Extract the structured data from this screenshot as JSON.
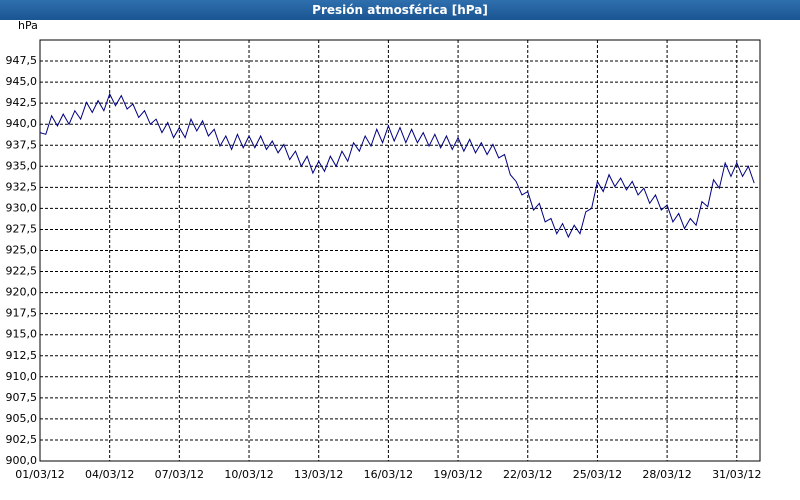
{
  "chart_data": {
    "type": "line",
    "title": "Presión atmosférica [hPa]",
    "y_label": "hPa",
    "xlim": [
      "2012-03-01T00:00",
      "2012-04-01T00:00"
    ],
    "xticks": [
      {
        "value": "2012-03-01T00:00",
        "label": "01/03/12"
      },
      {
        "value": "2012-03-04T00:00",
        "label": "04/03/12"
      },
      {
        "value": "2012-03-07T00:00",
        "label": "07/03/12"
      },
      {
        "value": "2012-03-10T00:00",
        "label": "10/03/12"
      },
      {
        "value": "2012-03-13T00:00",
        "label": "13/03/12"
      },
      {
        "value": "2012-03-16T00:00",
        "label": "16/03/12"
      },
      {
        "value": "2012-03-19T00:00",
        "label": "19/03/12"
      },
      {
        "value": "2012-03-22T00:00",
        "label": "22/03/12"
      },
      {
        "value": "2012-03-25T00:00",
        "label": "25/03/12"
      },
      {
        "value": "2012-03-28T00:00",
        "label": "28/03/12"
      },
      {
        "value": "2012-03-31T00:00",
        "label": "31/03/12"
      }
    ],
    "ylim": [
      900,
      950
    ],
    "yticks": [
      {
        "value": 900,
        "label": "900,0"
      },
      {
        "value": 902.5,
        "label": "902,5"
      },
      {
        "value": 905,
        "label": "905,0"
      },
      {
        "value": 907.5,
        "label": "907,5"
      },
      {
        "value": 910,
        "label": "910,0"
      },
      {
        "value": 912.5,
        "label": "912,5"
      },
      {
        "value": 915,
        "label": "915,0"
      },
      {
        "value": 917.5,
        "label": "917,5"
      },
      {
        "value": 920,
        "label": "920,0"
      },
      {
        "value": 922.5,
        "label": "922,5"
      },
      {
        "value": 925,
        "label": "925,0"
      },
      {
        "value": 927.5,
        "label": "927,5"
      },
      {
        "value": 930,
        "label": "930,0"
      },
      {
        "value": 932.5,
        "label": "932,5"
      },
      {
        "value": 935,
        "label": "935,0"
      },
      {
        "value": 937.5,
        "label": "937,5"
      },
      {
        "value": 940,
        "label": "940,0"
      },
      {
        "value": 942.5,
        "label": "942,5"
      },
      {
        "value": 945,
        "label": "945,0"
      },
      {
        "value": 947.5,
        "label": "947,5"
      }
    ],
    "grid": true,
    "x": [
      "2012-03-01T00:00",
      "2012-03-01T06:00",
      "2012-03-01T12:00",
      "2012-03-01T18:00",
      "2012-03-02T00:00",
      "2012-03-02T06:00",
      "2012-03-02T12:00",
      "2012-03-02T18:00",
      "2012-03-03T00:00",
      "2012-03-03T06:00",
      "2012-03-03T12:00",
      "2012-03-03T18:00",
      "2012-03-04T00:00",
      "2012-03-04T06:00",
      "2012-03-04T12:00",
      "2012-03-04T18:00",
      "2012-03-05T00:00",
      "2012-03-05T06:00",
      "2012-03-05T12:00",
      "2012-03-05T18:00",
      "2012-03-06T00:00",
      "2012-03-06T06:00",
      "2012-03-06T12:00",
      "2012-03-06T18:00",
      "2012-03-07T00:00",
      "2012-03-07T06:00",
      "2012-03-07T12:00",
      "2012-03-07T18:00",
      "2012-03-08T00:00",
      "2012-03-08T06:00",
      "2012-03-08T12:00",
      "2012-03-08T18:00",
      "2012-03-09T00:00",
      "2012-03-09T06:00",
      "2012-03-09T12:00",
      "2012-03-09T18:00",
      "2012-03-10T00:00",
      "2012-03-10T06:00",
      "2012-03-10T12:00",
      "2012-03-10T18:00",
      "2012-03-11T00:00",
      "2012-03-11T06:00",
      "2012-03-11T12:00",
      "2012-03-11T18:00",
      "2012-03-12T00:00",
      "2012-03-12T06:00",
      "2012-03-12T12:00",
      "2012-03-12T18:00",
      "2012-03-13T00:00",
      "2012-03-13T06:00",
      "2012-03-13T12:00",
      "2012-03-13T18:00",
      "2012-03-14T00:00",
      "2012-03-14T06:00",
      "2012-03-14T12:00",
      "2012-03-14T18:00",
      "2012-03-15T00:00",
      "2012-03-15T06:00",
      "2012-03-15T12:00",
      "2012-03-15T18:00",
      "2012-03-16T00:00",
      "2012-03-16T06:00",
      "2012-03-16T12:00",
      "2012-03-16T18:00",
      "2012-03-17T00:00",
      "2012-03-17T06:00",
      "2012-03-17T12:00",
      "2012-03-17T18:00",
      "2012-03-18T00:00",
      "2012-03-18T06:00",
      "2012-03-18T12:00",
      "2012-03-18T18:00",
      "2012-03-19T00:00",
      "2012-03-19T06:00",
      "2012-03-19T12:00",
      "2012-03-19T18:00",
      "2012-03-20T00:00",
      "2012-03-20T06:00",
      "2012-03-20T12:00",
      "2012-03-20T18:00",
      "2012-03-21T00:00",
      "2012-03-21T06:00",
      "2012-03-21T12:00",
      "2012-03-21T18:00",
      "2012-03-22T00:00",
      "2012-03-22T06:00",
      "2012-03-22T12:00",
      "2012-03-22T18:00",
      "2012-03-23T00:00",
      "2012-03-23T06:00",
      "2012-03-23T12:00",
      "2012-03-23T18:00",
      "2012-03-24T00:00",
      "2012-03-24T06:00",
      "2012-03-24T12:00",
      "2012-03-24T18:00",
      "2012-03-25T00:00",
      "2012-03-25T06:00",
      "2012-03-25T12:00",
      "2012-03-25T18:00",
      "2012-03-26T00:00",
      "2012-03-26T06:00",
      "2012-03-26T12:00",
      "2012-03-26T18:00",
      "2012-03-27T00:00",
      "2012-03-27T06:00",
      "2012-03-27T12:00",
      "2012-03-27T18:00",
      "2012-03-28T00:00",
      "2012-03-28T06:00",
      "2012-03-28T12:00",
      "2012-03-28T18:00",
      "2012-03-29T00:00",
      "2012-03-29T06:00",
      "2012-03-29T12:00",
      "2012-03-29T18:00",
      "2012-03-30T00:00",
      "2012-03-30T06:00",
      "2012-03-30T12:00",
      "2012-03-30T18:00",
      "2012-03-31T00:00",
      "2012-03-31T06:00",
      "2012-03-31T12:00",
      "2012-03-31T18:00"
    ],
    "series": [
      {
        "color": "#000080",
        "values": [
          939.0,
          938.8,
          941.0,
          939.8,
          941.2,
          940.0,
          941.6,
          940.6,
          942.6,
          941.4,
          942.8,
          941.6,
          943.6,
          942.2,
          943.4,
          941.8,
          942.4,
          940.8,
          941.6,
          940.0,
          940.6,
          939.0,
          940.2,
          938.4,
          939.6,
          938.4,
          940.6,
          939.2,
          940.4,
          938.6,
          939.4,
          937.4,
          938.6,
          937.0,
          938.8,
          937.2,
          938.6,
          937.2,
          938.6,
          937.0,
          938.0,
          936.6,
          937.6,
          935.8,
          936.8,
          935.0,
          936.2,
          934.2,
          935.6,
          934.4,
          936.2,
          935.0,
          936.8,
          935.6,
          937.8,
          936.8,
          938.6,
          937.4,
          939.4,
          937.8,
          939.8,
          938.0,
          939.6,
          937.8,
          939.4,
          937.8,
          939.0,
          937.4,
          938.8,
          937.2,
          938.6,
          937.0,
          938.4,
          936.8,
          938.2,
          936.6,
          937.8,
          936.4,
          937.6,
          936.0,
          936.4,
          934.0,
          933.2,
          931.6,
          932.0,
          929.8,
          930.6,
          928.4,
          928.8,
          927.0,
          928.2,
          926.6,
          928.0,
          927.0,
          929.6,
          930.0,
          933.2,
          932.0,
          934.0,
          932.6,
          933.6,
          932.2,
          933.2,
          931.6,
          932.4,
          930.6,
          931.6,
          929.8,
          930.4,
          928.4,
          929.4,
          927.6,
          928.8,
          928.0,
          930.8,
          930.2,
          933.4,
          932.4,
          935.4,
          933.8,
          935.4,
          933.8,
          935.0,
          933.0
        ]
      }
    ]
  }
}
